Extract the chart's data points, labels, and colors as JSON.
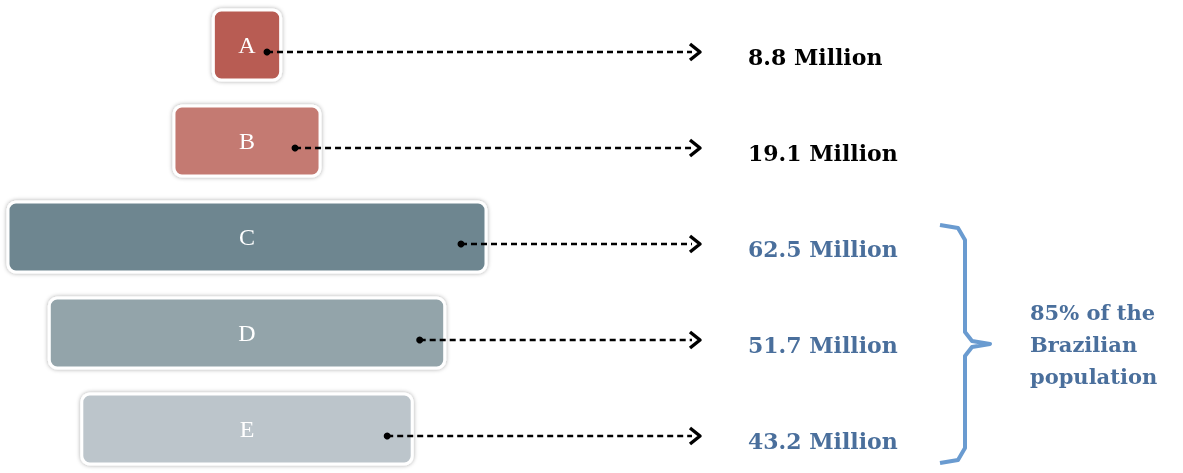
{
  "chart_data": {
    "type": "other",
    "categories": [
      "A",
      "B",
      "C",
      "D",
      "E"
    ],
    "values": [
      8.8,
      19.1,
      62.5,
      51.7,
      43.2
    ],
    "value_labels": [
      "8.8 Million",
      "19.1 Million",
      "62.5 Million",
      "51.7 Million",
      "43.2 Million"
    ],
    "colors": [
      "#b85c52",
      "#c47a72",
      "#6e8690",
      "#93a4aa",
      "#bcc5cb"
    ],
    "annotations": [
      "85% of the Brazilian population"
    ]
  }
}
